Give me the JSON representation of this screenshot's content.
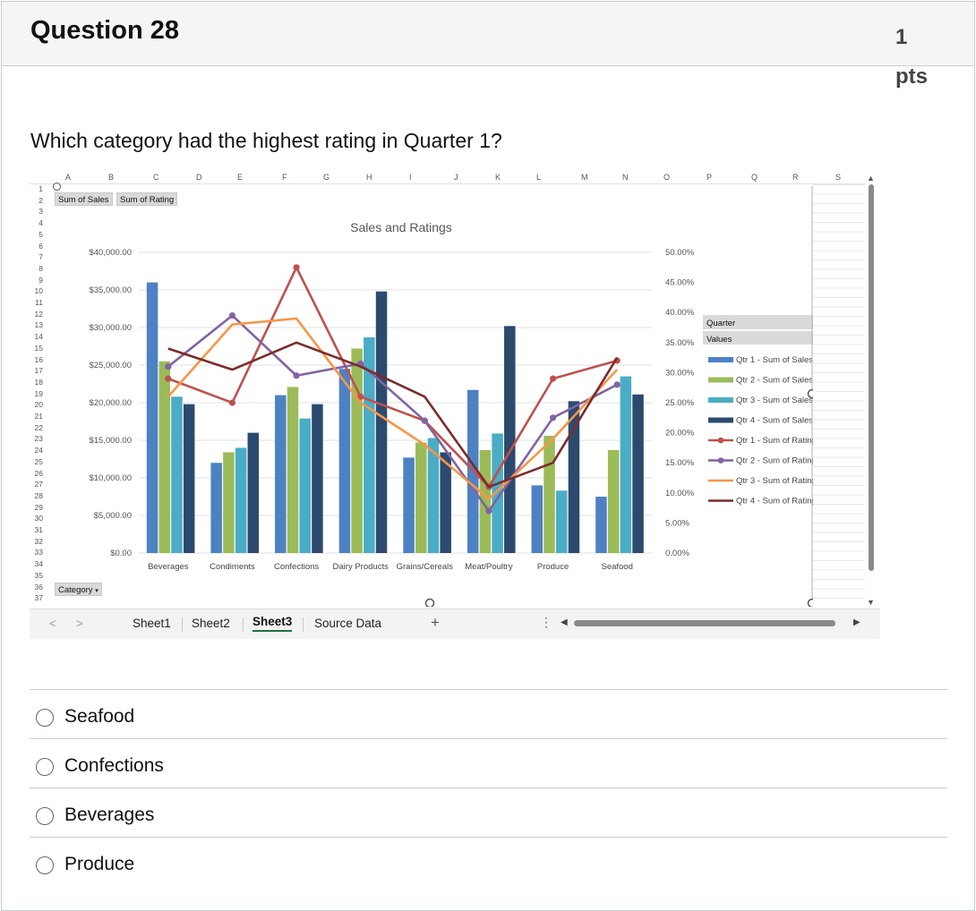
{
  "question": {
    "title": "Question 28",
    "points": "1 pts",
    "prompt": "Which category had the highest rating in Quarter 1?"
  },
  "excel": {
    "columns": [
      "A",
      "B",
      "C",
      "D",
      "E",
      "F",
      "G",
      "H",
      "I",
      "J",
      "K",
      "L",
      "M",
      "N",
      "O",
      "P",
      "Q",
      "R",
      "S"
    ],
    "rows": [
      "1",
      "2",
      "3",
      "4",
      "5",
      "6",
      "7",
      "8",
      "9",
      "10",
      "11",
      "12",
      "13",
      "14",
      "15",
      "16",
      "17",
      "18",
      "19",
      "20",
      "21",
      "22",
      "23",
      "24",
      "25",
      "26",
      "27",
      "28",
      "29",
      "30",
      "31",
      "32",
      "33",
      "34",
      "35",
      "36",
      "37"
    ],
    "pivot_buttons": {
      "sum_of_sales": "Sum of Sales",
      "sum_of_rating": "Sum of Rating",
      "category": "Category",
      "quarter": "Quarter",
      "values": "Values"
    },
    "sheet_tabs": [
      "Sheet1",
      "Sheet2",
      "Sheet3",
      "Source Data"
    ],
    "active_tab": "Sheet3",
    "add_sheet_symbol": "+",
    "more_symbol": "⋮"
  },
  "chart_data": {
    "type": "bar",
    "title": "Sales and Ratings",
    "categories": [
      "Beverages",
      "Condiments",
      "Confections",
      "Dairy Products",
      "Grains/Cereals",
      "Meat/Poultry",
      "Produce",
      "Seafood"
    ],
    "y_left": {
      "ticks": [
        "$0.00",
        "$5,000.00",
        "$10,000.00",
        "$15,000.00",
        "$20,000.00",
        "$25,000.00",
        "$30,000.00",
        "$35,000.00",
        "$40,000.00"
      ],
      "ylim": [
        0,
        40000
      ]
    },
    "y_right": {
      "ticks": [
        "0.00%",
        "5.00%",
        "10.00%",
        "15.00%",
        "20.00%",
        "25.00%",
        "30.00%",
        "35.00%",
        "40.00%",
        "45.00%",
        "50.00%"
      ],
      "ylim": [
        0,
        50
      ]
    },
    "bar_series": [
      {
        "name": "Qtr 1 - Sum of Sales",
        "color": "#4e81c4",
        "values": [
          36000,
          12000,
          21000,
          24500,
          12700,
          21700,
          9000,
          7500
        ]
      },
      {
        "name": "Qtr 2 - Sum of Sales",
        "color": "#9bbb59",
        "values": [
          25500,
          13400,
          22100,
          27200,
          14700,
          13700,
          15600,
          13700
        ]
      },
      {
        "name": "Qtr 3 - Sum of Sales",
        "color": "#4bacc6",
        "values": [
          20800,
          14000,
          17900,
          28700,
          15300,
          15900,
          8300,
          23500
        ]
      },
      {
        "name": "Qtr 4 - Sum of Sales",
        "color": "#2c4a6e",
        "values": [
          19800,
          16000,
          19800,
          34800,
          13400,
          30200,
          20200,
          21100
        ]
      }
    ],
    "line_series": [
      {
        "name": "Qtr 1 - Sum of Rating",
        "color": "#c0504d",
        "marker": true,
        "values": [
          29,
          25,
          47.5,
          26,
          22,
          11,
          29,
          32
        ]
      },
      {
        "name": "Qtr 2 - Sum of Rating",
        "color": "#8064a2",
        "marker": true,
        "values": [
          31,
          39.5,
          29.5,
          31.5,
          22,
          7,
          22.5,
          28
        ]
      },
      {
        "name": "Qtr 3 - Sum of Rating",
        "color": "#f79646",
        "marker": false,
        "values": [
          26,
          38,
          39,
          25,
          18,
          9,
          19,
          30.5
        ]
      },
      {
        "name": "Qtr 4 - Sum of Rating",
        "color": "#7b2c2c",
        "marker": false,
        "values": [
          34,
          30.5,
          35,
          31,
          26,
          11,
          15,
          32.5
        ]
      }
    ],
    "legend_position": "right",
    "grid": true
  },
  "answers": [
    {
      "label": "Seafood",
      "selected": false
    },
    {
      "label": "Confections",
      "selected": false
    },
    {
      "label": "Beverages",
      "selected": false
    },
    {
      "label": "Produce",
      "selected": false
    }
  ]
}
